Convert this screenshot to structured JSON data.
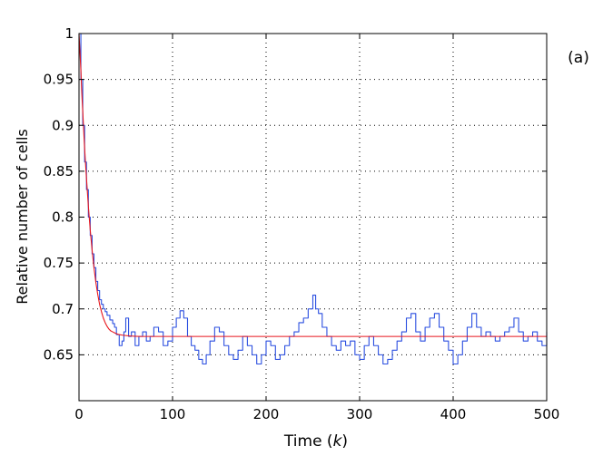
{
  "chart_data": {
    "type": "line",
    "panel_label": "(a)",
    "xlabel": "Time (",
    "xlabel_var": "k",
    "xlabel_suffix": ")",
    "ylabel": "Relative number of cells",
    "xlim": [
      0,
      500
    ],
    "ylim": [
      0.6,
      1.0
    ],
    "x_ticks": [
      0,
      100,
      200,
      300,
      400,
      500
    ],
    "x_tick_labels": [
      "0",
      "100",
      "200",
      "300",
      "400",
      "500"
    ],
    "y_ticks": [
      0.65,
      0.7,
      0.75,
      0.8,
      0.85,
      0.9,
      0.95,
      1.0
    ],
    "y_tick_labels": [
      "0.65",
      "0.7",
      "0.75",
      "0.8",
      "0.85",
      "0.9",
      "0.95",
      "1"
    ],
    "grid": true,
    "grid_style": "dotted",
    "series": [
      {
        "style": "step",
        "color": "#2b4fe0",
        "x": [
          0,
          2,
          4,
          6,
          8,
          10,
          12,
          14,
          16,
          18,
          20,
          22,
          24,
          26,
          28,
          30,
          33,
          36,
          38,
          40,
          43,
          46,
          48,
          50,
          53,
          56,
          60,
          64,
          68,
          72,
          76,
          80,
          85,
          90,
          95,
          100,
          104,
          108,
          112,
          116,
          120,
          124,
          128,
          132,
          136,
          140,
          145,
          150,
          155,
          160,
          165,
          170,
          175,
          180,
          185,
          190,
          195,
          200,
          205,
          210,
          215,
          220,
          225,
          230,
          235,
          240,
          245,
          250,
          253,
          256,
          260,
          265,
          270,
          275,
          280,
          285,
          290,
          295,
          300,
          305,
          310,
          315,
          320,
          325,
          330,
          335,
          340,
          345,
          350,
          355,
          360,
          365,
          370,
          375,
          380,
          385,
          390,
          395,
          400,
          405,
          410,
          415,
          420,
          425,
          430,
          435,
          440,
          445,
          450,
          455,
          460,
          465,
          470,
          475,
          480,
          485,
          490,
          495,
          500
        ],
        "y": [
          1.0,
          0.95,
          0.9,
          0.86,
          0.83,
          0.8,
          0.78,
          0.76,
          0.745,
          0.73,
          0.72,
          0.71,
          0.705,
          0.7,
          0.697,
          0.693,
          0.688,
          0.684,
          0.68,
          0.672,
          0.66,
          0.665,
          0.675,
          0.69,
          0.67,
          0.675,
          0.66,
          0.67,
          0.675,
          0.665,
          0.67,
          0.68,
          0.675,
          0.66,
          0.665,
          0.68,
          0.69,
          0.698,
          0.69,
          0.67,
          0.66,
          0.655,
          0.645,
          0.64,
          0.65,
          0.665,
          0.68,
          0.675,
          0.66,
          0.65,
          0.645,
          0.655,
          0.67,
          0.66,
          0.65,
          0.64,
          0.65,
          0.665,
          0.66,
          0.645,
          0.65,
          0.66,
          0.67,
          0.675,
          0.685,
          0.69,
          0.7,
          0.715,
          0.7,
          0.695,
          0.68,
          0.67,
          0.66,
          0.655,
          0.665,
          0.66,
          0.665,
          0.65,
          0.645,
          0.66,
          0.67,
          0.66,
          0.65,
          0.64,
          0.645,
          0.655,
          0.665,
          0.675,
          0.69,
          0.695,
          0.675,
          0.665,
          0.68,
          0.69,
          0.695,
          0.68,
          0.665,
          0.655,
          0.64,
          0.65,
          0.665,
          0.68,
          0.695,
          0.68,
          0.67,
          0.675,
          0.67,
          0.665,
          0.67,
          0.675,
          0.68,
          0.69,
          0.675,
          0.665,
          0.67,
          0.675,
          0.665,
          0.66,
          0.675
        ]
      },
      {
        "style": "smooth",
        "color": "#e8161c",
        "x": [
          0,
          1,
          2,
          3,
          4,
          5,
          6,
          7,
          8,
          9,
          10,
          12,
          14,
          16,
          18,
          20,
          22,
          24,
          26,
          28,
          30,
          32,
          34,
          36,
          38,
          40,
          43,
          46,
          50,
          55,
          60,
          65,
          70,
          80,
          90,
          100,
          150,
          200,
          250,
          300,
          350,
          400,
          450,
          500
        ],
        "y": [
          1.0,
          0.98,
          0.96,
          0.935,
          0.915,
          0.895,
          0.875,
          0.858,
          0.842,
          0.827,
          0.812,
          0.786,
          0.764,
          0.745,
          0.729,
          0.716,
          0.705,
          0.697,
          0.69,
          0.685,
          0.681,
          0.678,
          0.676,
          0.675,
          0.674,
          0.673,
          0.672,
          0.6715,
          0.671,
          0.6705,
          0.6702,
          0.67,
          0.67,
          0.67,
          0.67,
          0.67,
          0.67,
          0.67,
          0.67,
          0.67,
          0.67,
          0.67,
          0.67,
          0.67
        ]
      }
    ]
  }
}
